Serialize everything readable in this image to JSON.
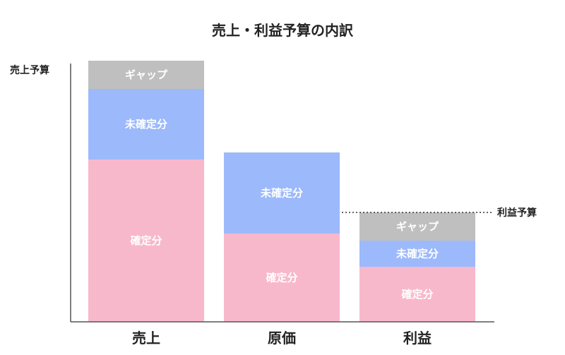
{
  "chart_data": {
    "type": "bar",
    "stacked": true,
    "title": "売上・利益予算の内訳",
    "categories": [
      "売上",
      "原価",
      "利益"
    ],
    "ylim": [
      0,
      370
    ],
    "y_axis_label": "売上予算",
    "grid": false,
    "legend": "none",
    "series": [
      {
        "key": "confirmed",
        "label": "確定分",
        "color": "#f8b8cc",
        "values": [
          230,
          125,
          78
        ]
      },
      {
        "key": "unconfirmed",
        "label": "未確定分",
        "color": "#9cb9fb",
        "values": [
          100,
          115,
          37
        ]
      },
      {
        "key": "gap",
        "label": "ギャップ",
        "color": "#bfbfbf",
        "values": [
          40,
          0,
          40
        ]
      }
    ],
    "annotations": [
      {
        "text": "利益予算",
        "category": "利益",
        "value": 155,
        "style": "dotted-line"
      }
    ]
  }
}
